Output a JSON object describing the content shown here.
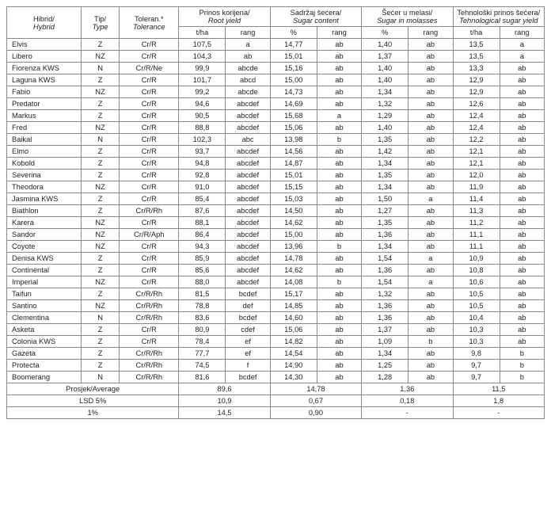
{
  "headers": {
    "hybrid": {
      "t1": "Hibrid/",
      "t2": "Hybrid"
    },
    "type": {
      "t1": "Tip/",
      "t2": "Type"
    },
    "tol": {
      "t1": "Toleran.*",
      "t2": "Tolerance"
    },
    "root": {
      "t1": "Prinos korijena/",
      "t2": "Root yield"
    },
    "sugar": {
      "t1": "Sadržaj šećera/",
      "t2": "Sugar content"
    },
    "mol": {
      "t1": "Šećer u melasi/",
      "t2": "Sugar in molasses"
    },
    "tech": {
      "t1": "Tehnološki prinos šećera/",
      "t2": "Tehnological sugar yield"
    },
    "tha": "t/ha",
    "rang": "rang",
    "pct": "%"
  },
  "footer": {
    "avg": "Prosjek/Average",
    "lsd5": "LSD 5%",
    "lsd1": "1%"
  },
  "avg": {
    "root": "89,6",
    "sugar": "14,78",
    "mol": "1,36",
    "tech": "11,5"
  },
  "lsd5": {
    "root": "10,9",
    "sugar": "0,67",
    "mol": "0,18",
    "tech": "1,8"
  },
  "lsd1": {
    "root": "14,5",
    "sugar": "0,90",
    "mol": "-",
    "tech": "-"
  },
  "rows": [
    {
      "h": "Elvis",
      "ty": "Z",
      "to": "Cr/R",
      "rv": "107,5",
      "rr": "a",
      "sv": "14,77",
      "sr": "ab",
      "mv": "1,40",
      "mr": "ab",
      "tv": "13,5",
      "tr": "a"
    },
    {
      "h": "Libero",
      "ty": "NZ",
      "to": "Cr/R",
      "rv": "104,3",
      "rr": "ab",
      "sv": "15,01",
      "sr": "ab",
      "mv": "1,37",
      "mr": "ab",
      "tv": "13,5",
      "tr": "a"
    },
    {
      "h": "Fiorenza KWS",
      "ty": "N",
      "to": "Cr/R/Ne",
      "rv": "99,9",
      "rr": "abcde",
      "sv": "15,16",
      "sr": "ab",
      "mv": "1,40",
      "mr": "ab",
      "tv": "13,3",
      "tr": "ab"
    },
    {
      "h": "Laguna KWS",
      "ty": "Z",
      "to": "Cr/R",
      "rv": "101,7",
      "rr": "abcd",
      "sv": "15,00",
      "sr": "ab",
      "mv": "1,40",
      "mr": "ab",
      "tv": "12,9",
      "tr": "ab"
    },
    {
      "h": "Fabio",
      "ty": "NZ",
      "to": "Cr/R",
      "rv": "99,2",
      "rr": "abcde",
      "sv": "14,73",
      "sr": "ab",
      "mv": "1,34",
      "mr": "ab",
      "tv": "12,9",
      "tr": "ab"
    },
    {
      "h": "Predator",
      "ty": "Z",
      "to": "Cr/R",
      "rv": "94,6",
      "rr": "abcdef",
      "sv": "14,69",
      "sr": "ab",
      "mv": "1,32",
      "mr": "ab",
      "tv": "12,6",
      "tr": "ab"
    },
    {
      "h": "Markus",
      "ty": "Z",
      "to": "Cr/R",
      "rv": "90,5",
      "rr": "abcdef",
      "sv": "15,68",
      "sr": "a",
      "mv": "1,29",
      "mr": "ab",
      "tv": "12,4",
      "tr": "ab"
    },
    {
      "h": "Fred",
      "ty": "NZ",
      "to": "Cr/R",
      "rv": "88,8",
      "rr": "abcdef",
      "sv": "15,06",
      "sr": "ab",
      "mv": "1,40",
      "mr": "ab",
      "tv": "12,4",
      "tr": "ab"
    },
    {
      "h": "Baikal",
      "ty": "N",
      "to": "Cr/R",
      "rv": "102,3",
      "rr": "abc",
      "sv": "13,98",
      "sr": "b",
      "mv": "1,35",
      "mr": "ab",
      "tv": "12,2",
      "tr": "ab"
    },
    {
      "h": "Elmo",
      "ty": "Z",
      "to": "Cr/R",
      "rv": "93,7",
      "rr": "abcdef",
      "sv": "14,56",
      "sr": "ab",
      "mv": "1,42",
      "mr": "ab",
      "tv": "12,1",
      "tr": "ab"
    },
    {
      "h": "Kobold",
      "ty": "Z",
      "to": "Cr/R",
      "rv": "94,8",
      "rr": "abcdef",
      "sv": "14,87",
      "sr": "ab",
      "mv": "1,34",
      "mr": "ab",
      "tv": "12,1",
      "tr": "ab"
    },
    {
      "h": "Severina",
      "ty": "Z",
      "to": "Cr/R",
      "rv": "92,8",
      "rr": "abcdef",
      "sv": "15,01",
      "sr": "ab",
      "mv": "1,35",
      "mr": "ab",
      "tv": "12,0",
      "tr": "ab"
    },
    {
      "h": "Theodora",
      "ty": "NZ",
      "to": "Cr/R",
      "rv": "91,0",
      "rr": "abcdef",
      "sv": "15,15",
      "sr": "ab",
      "mv": "1,34",
      "mr": "ab",
      "tv": "11,9",
      "tr": "ab"
    },
    {
      "h": "Jasmina KWS",
      "ty": "Z",
      "to": "Cr/R",
      "rv": "85,4",
      "rr": "abcdef",
      "sv": "15,03",
      "sr": "ab",
      "mv": "1,50",
      "mr": "a",
      "tv": "11,4",
      "tr": "ab"
    },
    {
      "h": "Biathlon",
      "ty": "Z",
      "to": "Cr/R/Rh",
      "rv": "87,6",
      "rr": "abcdef",
      "sv": "14,50",
      "sr": "ab",
      "mv": "1,27",
      "mr": "ab",
      "tv": "11,3",
      "tr": "ab"
    },
    {
      "h": "Karera",
      "ty": "NZ",
      "to": "Cr/R",
      "rv": "88,1",
      "rr": "abcdef",
      "sv": "14,62",
      "sr": "ab",
      "mv": "1,35",
      "mr": "ab",
      "tv": "11,2",
      "tr": "ab"
    },
    {
      "h": "Sandor",
      "ty": "NZ",
      "to": "Cr/R/Aph",
      "rv": "86,4",
      "rr": "abcdef",
      "sv": "15,00",
      "sr": "ab",
      "mv": "1,36",
      "mr": "ab",
      "tv": "11,1",
      "tr": "ab"
    },
    {
      "h": "Coyote",
      "ty": "NZ",
      "to": "Cr/R",
      "rv": "94,3",
      "rr": "abcdef",
      "sv": "13,96",
      "sr": "b",
      "mv": "1,34",
      "mr": "ab",
      "tv": "11,1",
      "tr": "ab"
    },
    {
      "h": "Denisa KWS",
      "ty": "Z",
      "to": "Cr/R",
      "rv": "85,9",
      "rr": "abcdef",
      "sv": "14,78",
      "sr": "ab",
      "mv": "1,54",
      "mr": "a",
      "tv": "10,9",
      "tr": "ab"
    },
    {
      "h": "Continental",
      "ty": "Z",
      "to": "Cr/R",
      "rv": "85,6",
      "rr": "abcdef",
      "sv": "14,62",
      "sr": "ab",
      "mv": "1,36",
      "mr": "ab",
      "tv": "10,8",
      "tr": "ab"
    },
    {
      "h": "Imperial",
      "ty": "NZ",
      "to": "Cr/R",
      "rv": "88,0",
      "rr": "abcdef",
      "sv": "14,08",
      "sr": "b",
      "mv": "1,54",
      "mr": "a",
      "tv": "10,6",
      "tr": "ab"
    },
    {
      "h": "Taifun",
      "ty": "Z",
      "to": "Cr/R/Rh",
      "rv": "81,5",
      "rr": "bcdef",
      "sv": "15,17",
      "sr": "ab",
      "mv": "1,32",
      "mr": "ab",
      "tv": "10,5",
      "tr": "ab"
    },
    {
      "h": "Santino",
      "ty": "NZ",
      "to": "Cr/R/Rh",
      "rv": "78,8",
      "rr": "def",
      "sv": "14,85",
      "sr": "ab",
      "mv": "1,36",
      "mr": "ab",
      "tv": "10,5",
      "tr": "ab"
    },
    {
      "h": "Clementina",
      "ty": "N",
      "to": "Cr/R/Rh",
      "rv": "83,6",
      "rr": "bcdef",
      "sv": "14,60",
      "sr": "ab",
      "mv": "1,36",
      "mr": "ab",
      "tv": "10,4",
      "tr": "ab"
    },
    {
      "h": "Asketa",
      "ty": "Z",
      "to": "Cr/R",
      "rv": "80,9",
      "rr": "cdef",
      "sv": "15,06",
      "sr": "ab",
      "mv": "1,37",
      "mr": "ab",
      "tv": "10,3",
      "tr": "ab"
    },
    {
      "h": "Colonia KWS",
      "ty": "Z",
      "to": "Cr/R",
      "rv": "78,4",
      "rr": "ef",
      "sv": "14,82",
      "sr": "ab",
      "mv": "1,09",
      "mr": "b",
      "tv": "10,3",
      "tr": "ab"
    },
    {
      "h": "Gazeta",
      "ty": "Z",
      "to": "Cr/R/Rh",
      "rv": "77,7",
      "rr": "ef",
      "sv": "14,54",
      "sr": "ab",
      "mv": "1,34",
      "mr": "ab",
      "tv": "9,8",
      "tr": "b"
    },
    {
      "h": "Protecta",
      "ty": "Z",
      "to": "Cr/R/Rh",
      "rv": "74,5",
      "rr": "f",
      "sv": "14,90",
      "sr": "ab",
      "mv": "1,25",
      "mr": "ab",
      "tv": "9,7",
      "tr": "b"
    },
    {
      "h": "Boomerang",
      "ty": "N",
      "to": "Cr/R/Rh",
      "rv": "81,6",
      "rr": "bcdef",
      "sv": "14,30",
      "sr": "ab",
      "mv": "1,28",
      "mr": "ab",
      "tv": "9,7",
      "tr": "b"
    }
  ]
}
